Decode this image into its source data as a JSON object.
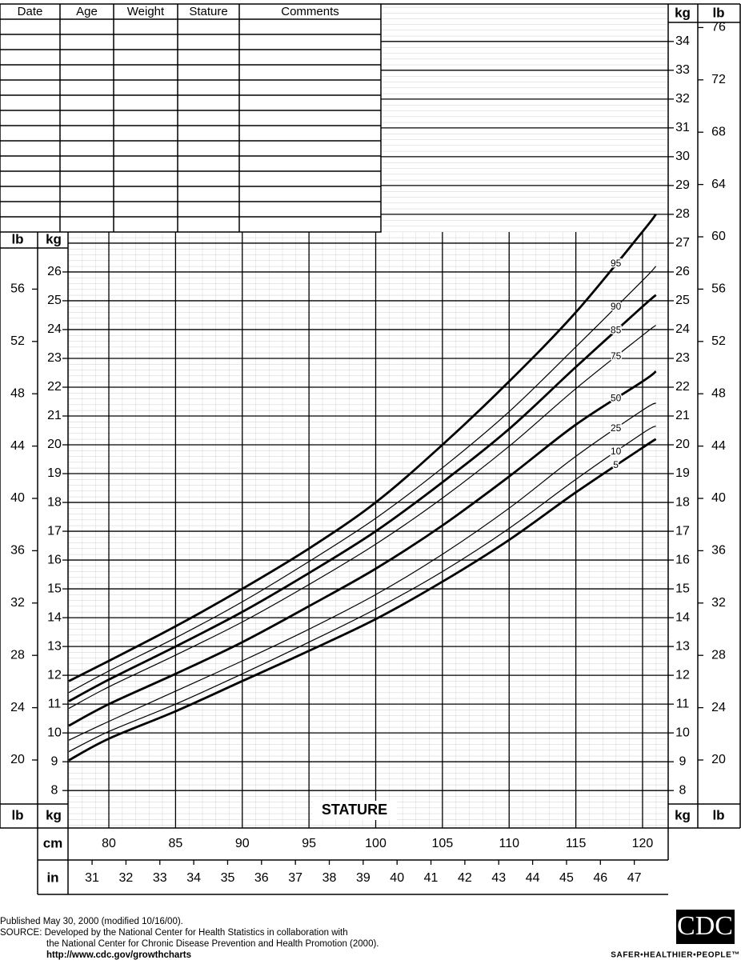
{
  "table": {
    "headers": [
      "Date",
      "Age",
      "Weight",
      "Stature",
      "Comments"
    ]
  },
  "chart_data": {
    "type": "line",
    "x_label": "STATURE",
    "x_unit": "cm",
    "x2_unit": "in",
    "y_unit": "kg",
    "y2_unit": "lb",
    "xlim": [
      76.94,
      121.92
    ],
    "xticks": [
      80,
      85,
      90,
      95,
      100,
      105,
      110,
      115,
      120
    ],
    "x2lim": [
      30.29,
      48.0
    ],
    "x2ticks": [
      31,
      32,
      33,
      34,
      35,
      36,
      37,
      38,
      39,
      40,
      41,
      42,
      43,
      44,
      45,
      46,
      47
    ],
    "ylim": [
      6.7,
      35.3
    ],
    "yticks": [
      8,
      9,
      10,
      11,
      12,
      13,
      14,
      15,
      16,
      17,
      18,
      19,
      20,
      21,
      22,
      23,
      24,
      25,
      26,
      27,
      28,
      29,
      30,
      31,
      32,
      33,
      34
    ],
    "y2lim": [
      14.8,
      77.8
    ],
    "y2ticks": [
      20,
      24,
      28,
      32,
      36,
      40,
      44,
      48,
      52,
      56,
      60,
      64,
      68,
      72,
      76
    ],
    "grid": true,
    "x": [
      77,
      80,
      85,
      90,
      95,
      100,
      105,
      110,
      115,
      120,
      121
    ],
    "series": [
      {
        "name": "95",
        "color": "#000000",
        "bold": true,
        "values": [
          11.8,
          12.5,
          13.7,
          15.0,
          16.4,
          18.0,
          20.0,
          22.2,
          24.6,
          27.4,
          28.0
        ]
      },
      {
        "name": "90",
        "color": "#000000",
        "bold": false,
        "values": [
          11.4,
          12.15,
          13.3,
          14.55,
          15.95,
          17.45,
          19.2,
          21.15,
          23.4,
          25.7,
          26.2
        ]
      },
      {
        "name": "85",
        "color": "#000000",
        "bold": true,
        "values": [
          11.1,
          11.85,
          13.0,
          14.2,
          15.55,
          17.0,
          18.7,
          20.55,
          22.7,
          24.8,
          25.2
        ]
      },
      {
        "name": "75",
        "color": "#000000",
        "bold": false,
        "values": [
          10.85,
          11.6,
          12.7,
          13.85,
          15.15,
          16.55,
          18.15,
          19.95,
          21.95,
          23.8,
          24.15
        ]
      },
      {
        "name": "50",
        "color": "#000000",
        "bold": true,
        "values": [
          10.25,
          11.0,
          12.05,
          13.15,
          14.4,
          15.7,
          17.2,
          18.9,
          20.7,
          22.2,
          22.55
        ]
      },
      {
        "name": "25",
        "color": "#000000",
        "bold": false,
        "values": [
          9.75,
          10.4,
          11.45,
          12.5,
          13.6,
          14.8,
          16.2,
          17.8,
          19.6,
          21.2,
          21.45
        ]
      },
      {
        "name": "10",
        "color": "#000000",
        "bold": false,
        "values": [
          9.35,
          10.05,
          11.0,
          12.05,
          13.15,
          14.3,
          15.6,
          17.1,
          18.8,
          20.4,
          20.65
        ]
      },
      {
        "name": "5",
        "color": "#000000",
        "bold": true,
        "values": [
          9.05,
          9.8,
          10.75,
          11.8,
          12.85,
          13.95,
          15.25,
          16.7,
          18.35,
          19.9,
          20.2
        ]
      }
    ]
  },
  "footer": {
    "lines": [
      "Published May 30, 2000 (modified 10/16/00).",
      "SOURCE: Developed by the National Center for Health Statistics in collaboration with",
      "the National Center for Chronic Disease Prevention and Health Promotion (2000)."
    ],
    "url": "http://www.cdc.gov/growthcharts",
    "logo": "CDC",
    "tagline": "SAFER•HEALTHIER•PEOPLE™"
  }
}
